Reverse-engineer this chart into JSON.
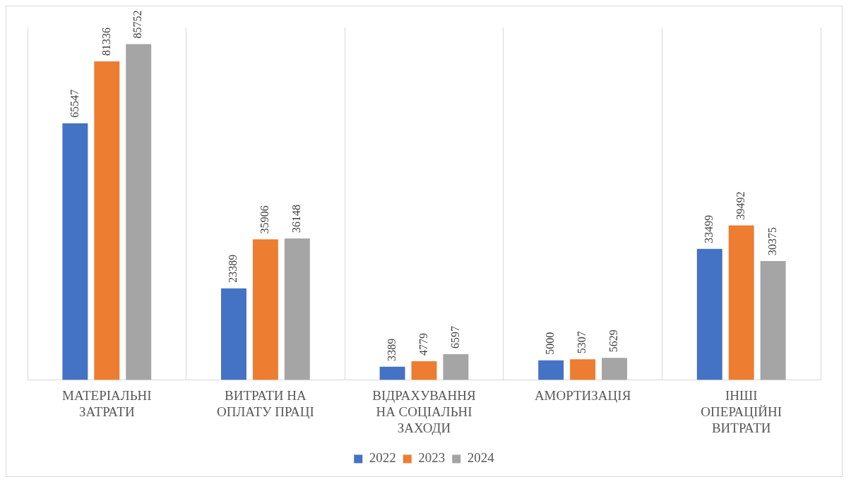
{
  "chart_data": {
    "type": "bar",
    "categories": [
      "МАТЕРІАЛЬНІ ЗАТРАТИ",
      "ВИТРАТИ НА ОПЛАТУ ПРАЦІ",
      "ВІДРАХУВАННЯ НА СОЦІАЛЬНІ ЗАХОДИ",
      "АМОРТИЗАЦІЯ",
      "ІНШІ ОПЕРАЦІЙНІ ВИТРАТИ"
    ],
    "series": [
      {
        "name": "2022",
        "color": "#4472c4",
        "values": [
          65547,
          23389,
          3389,
          5000,
          33499
        ]
      },
      {
        "name": "2023",
        "color": "#ed7d31",
        "values": [
          81336,
          35906,
          4779,
          5307,
          39492
        ]
      },
      {
        "name": "2024",
        "color": "#a5a5a5",
        "values": [
          85752,
          36148,
          6597,
          5629,
          30375
        ]
      }
    ],
    "data_labels": true,
    "grid": "x",
    "legend": "bottom"
  }
}
